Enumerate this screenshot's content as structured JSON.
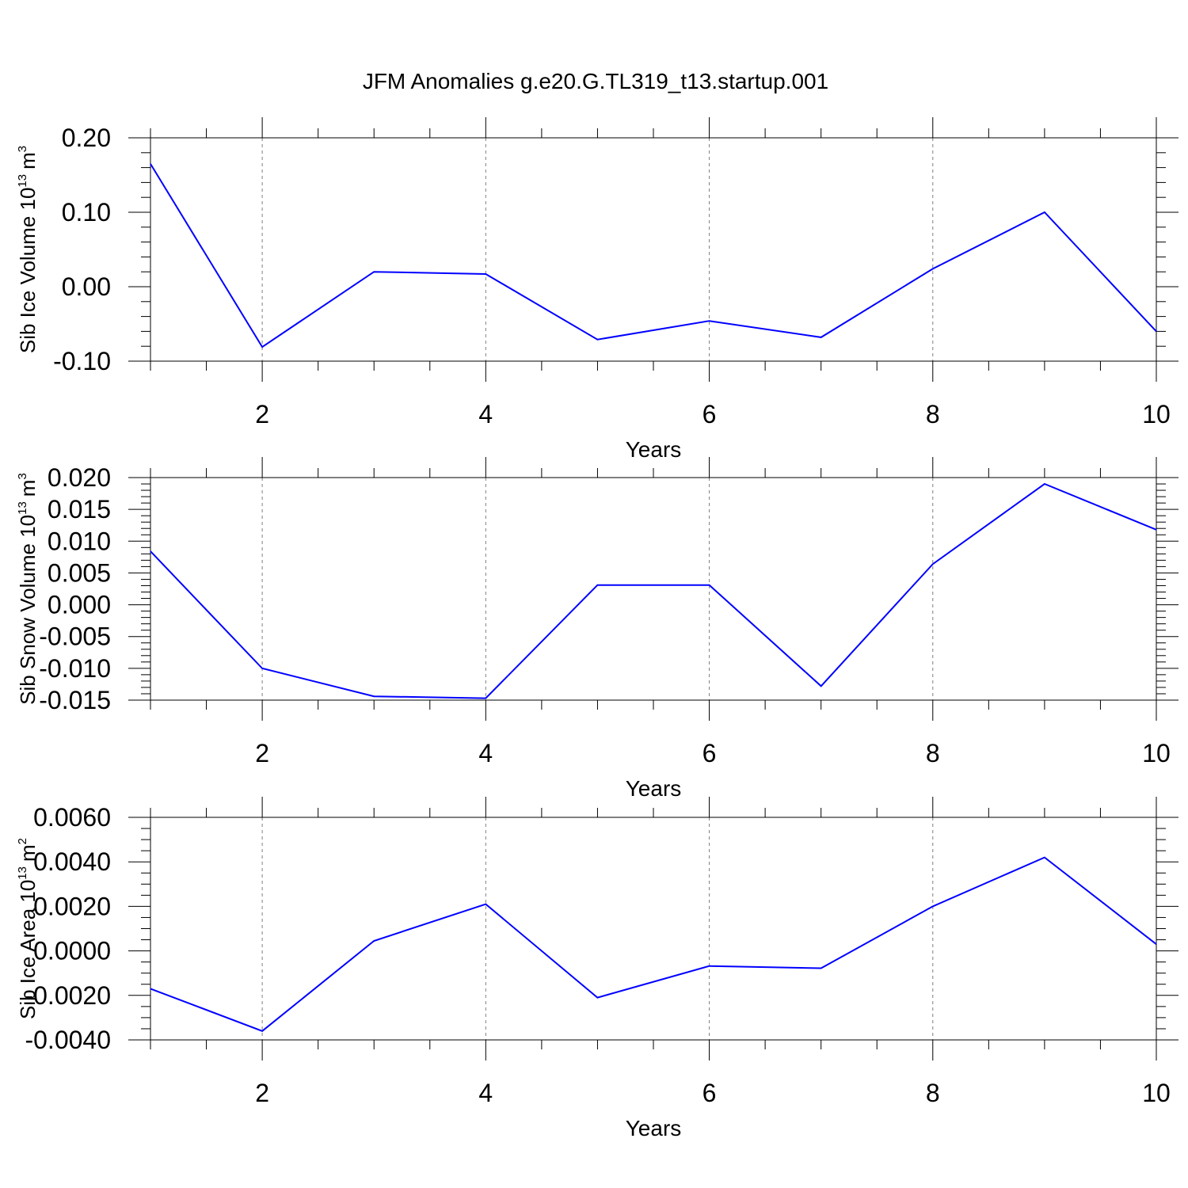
{
  "title": "JFM Anomalies g.e20.G.TL319_t13.startup.001",
  "colors": {
    "series": "#0000ff",
    "axis": "#000000",
    "grid": "#7f7f7f"
  },
  "chart_data": [
    {
      "type": "line",
      "title": "JFM Anomalies g.e20.G.TL319_t13.startup.001",
      "xlabel": "Years",
      "ylabel": "Sib Ice Volume 10",
      "ylabel_exponent": "13",
      "ylabel_unit": "m",
      "ylabel_unit_exponent": "3",
      "xlim": [
        1,
        10
      ],
      "ylim": [
        -0.1,
        0.2
      ],
      "xticks": [
        2,
        4,
        6,
        8,
        10
      ],
      "xtick_labels": [
        "2",
        "4",
        "6",
        "8",
        "10"
      ],
      "yticks": [
        -0.1,
        0.0,
        0.1,
        0.2
      ],
      "ytick_labels": [
        "-0.10",
        "0.00",
        "0.10",
        "0.20"
      ],
      "grid": "dashed vertical at major x ticks",
      "series": [
        {
          "name": "Sib Ice Volume anomaly",
          "x": [
            1,
            2,
            3,
            4,
            5,
            6,
            7,
            8,
            9,
            10
          ],
          "values": [
            0.165,
            -0.081,
            0.02,
            0.017,
            -0.071,
            -0.046,
            -0.068,
            0.024,
            0.1,
            -0.06
          ]
        }
      ]
    },
    {
      "type": "line",
      "xlabel": "Years",
      "ylabel": "Sib Snow Volume 10",
      "ylabel_exponent": "13",
      "ylabel_unit": "m",
      "ylabel_unit_exponent": "3",
      "xlim": [
        1,
        10
      ],
      "ylim": [
        -0.015,
        0.02
      ],
      "xticks": [
        2,
        4,
        6,
        8,
        10
      ],
      "xtick_labels": [
        "2",
        "4",
        "6",
        "8",
        "10"
      ],
      "yticks": [
        -0.015,
        -0.01,
        -0.005,
        0.0,
        0.005,
        0.01,
        0.015,
        0.02
      ],
      "ytick_labels": [
        "-0.015",
        "-0.010",
        "-0.005",
        "0.000",
        "0.005",
        "0.010",
        "0.015",
        "0.020"
      ],
      "grid": "dashed vertical at major x ticks",
      "series": [
        {
          "name": "Sib Snow Volume anomaly",
          "x": [
            1,
            2,
            3,
            4,
            5,
            6,
            7,
            8,
            9,
            10
          ],
          "values": [
            0.0084,
            -0.01,
            -0.0144,
            -0.0147,
            0.0031,
            0.0031,
            -0.0128,
            0.0064,
            0.019,
            0.0118
          ]
        }
      ]
    },
    {
      "type": "line",
      "xlabel": "Years",
      "ylabel": "Sib Ice Area 10",
      "ylabel_exponent": "13",
      "ylabel_unit": "m",
      "ylabel_unit_exponent": "2",
      "xlim": [
        1,
        10
      ],
      "ylim": [
        -0.004,
        0.006
      ],
      "xticks": [
        2,
        4,
        6,
        8,
        10
      ],
      "xtick_labels": [
        "2",
        "4",
        "6",
        "8",
        "10"
      ],
      "yticks": [
        -0.004,
        -0.002,
        0.0,
        0.002,
        0.004,
        0.006
      ],
      "ytick_labels": [
        "-0.0040",
        "-0.0020",
        "0.0000",
        "0.0020",
        "0.0040",
        "0.0060"
      ],
      "grid": "dashed vertical at major x ticks",
      "series": [
        {
          "name": "Sib Ice Area anomaly",
          "x": [
            1,
            2,
            3,
            4,
            5,
            6,
            7,
            8,
            9,
            10
          ],
          "values": [
            -0.0017,
            -0.0036,
            0.00045,
            0.0021,
            -0.0021,
            -0.00068,
            -0.00078,
            0.002,
            0.0042,
            0.0003
          ]
        }
      ]
    }
  ]
}
